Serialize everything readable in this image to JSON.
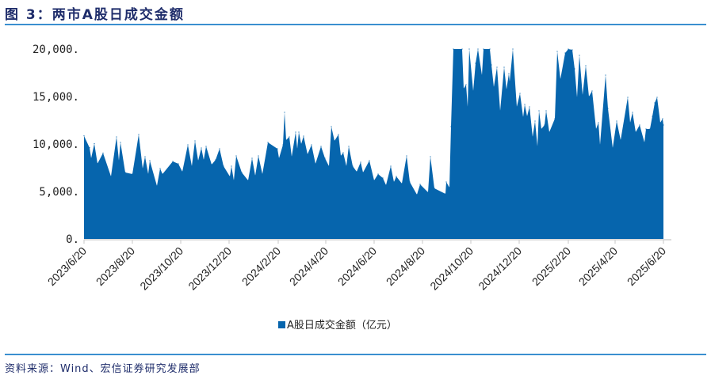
{
  "header": {
    "title": "图 3：两市A股日成交金额"
  },
  "footer": {
    "source": "资料来源：Wind、宏信证券研究发展部"
  },
  "chart_data": {
    "type": "area",
    "title": "图 3：两市A股日成交金额",
    "xlabel": "",
    "ylabel": "",
    "ylim": [
      0,
      20000
    ],
    "grid": false,
    "legend_position": "bottom",
    "color": "#0665ad",
    "y_ticks": [
      "0.",
      "5,000.",
      "10,000.",
      "15,000.",
      "20,000."
    ],
    "y_tick_values": [
      0,
      5000,
      10000,
      15000,
      20000
    ],
    "x_ticks": [
      "2023/6/20",
      "2023/8/20",
      "2023/10/20",
      "2023/12/20",
      "2024/2/20",
      "2024/4/20",
      "2024/6/20",
      "2024/8/20",
      "2024/10/20",
      "2024/12/20",
      "2025/2/20",
      "2025/4/20",
      "2025/6/20"
    ],
    "series": [
      {
        "name": "A股日成交金额（亿元）",
        "x": [
          "2023-06-20",
          "2023-06-27",
          "2023-06-29",
          "2023-07-03",
          "2023-07-07",
          "2023-07-14",
          "2023-07-24",
          "2023-07-31",
          "2023-08-03",
          "2023-08-05",
          "2023-08-11",
          "2023-08-20",
          "2023-08-28",
          "2023-09-02",
          "2023-09-05",
          "2023-09-09",
          "2023-09-11",
          "2023-09-20",
          "2023-09-24",
          "2023-09-27",
          "2023-10-10",
          "2023-10-17",
          "2023-10-22",
          "2023-10-29",
          "2023-11-03",
          "2023-11-07",
          "2023-11-11",
          "2023-11-15",
          "2023-11-18",
          "2023-11-21",
          "2023-11-28",
          "2023-12-03",
          "2023-12-08",
          "2023-12-13",
          "2023-12-21",
          "2023-12-23",
          "2023-12-26",
          "2023-12-29",
          "2024-01-05",
          "2024-01-13",
          "2024-01-18",
          "2024-01-22",
          "2024-01-26",
          "2024-01-31",
          "2024-02-07",
          "2024-02-19",
          "2024-02-21",
          "2024-02-26",
          "2024-02-28",
          "2024-03-01",
          "2024-03-05",
          "2024-03-08",
          "2024-03-13",
          "2024-03-15",
          "2024-03-17",
          "2024-03-20",
          "2024-03-23",
          "2024-03-28",
          "2024-04-02",
          "2024-04-07",
          "2024-04-14",
          "2024-04-19",
          "2024-04-24",
          "2024-04-27",
          "2024-05-01",
          "2024-05-06",
          "2024-05-09",
          "2024-05-12",
          "2024-05-16",
          "2024-05-19",
          "2024-05-24",
          "2024-05-29",
          "2024-06-03",
          "2024-06-06",
          "2024-06-14",
          "2024-06-20",
          "2024-06-25",
          "2024-07-01",
          "2024-07-05",
          "2024-07-11",
          "2024-07-15",
          "2024-07-18",
          "2024-07-25",
          "2024-07-31",
          "2024-08-04",
          "2024-08-13",
          "2024-08-17",
          "2024-08-27",
          "2024-08-30",
          "2024-09-04",
          "2024-09-18",
          "2024-09-19",
          "2024-09-23",
          "2024-09-25",
          "2024-09-28",
          "2024-10-09",
          "2024-10-11",
          "2024-10-14",
          "2024-10-16",
          "2024-10-18",
          "2024-10-23",
          "2024-10-26",
          "2024-10-29",
          "2024-11-03",
          "2024-11-05",
          "2024-11-13",
          "2024-11-15",
          "2024-11-18",
          "2024-11-22",
          "2024-11-26",
          "2024-12-01",
          "2024-12-04",
          "2024-12-07",
          "2024-12-08",
          "2024-12-12",
          "2024-12-17",
          "2024-12-21",
          "2024-12-25",
          "2024-12-27",
          "2024-12-30",
          "2025-01-02",
          "2025-01-06",
          "2025-01-09",
          "2025-01-12",
          "2025-01-14",
          "2025-01-17",
          "2025-01-21",
          "2025-01-23",
          "2025-01-27",
          "2025-02-03",
          "2025-02-06",
          "2025-02-10",
          "2025-02-16",
          "2025-02-20",
          "2025-02-25",
          "2025-02-28",
          "2025-03-03",
          "2025-03-06",
          "2025-03-10",
          "2025-03-14",
          "2025-03-18",
          "2025-03-22",
          "2025-03-27",
          "2025-03-30",
          "2025-04-01",
          "2025-04-08",
          "2025-04-11",
          "2025-04-17",
          "2025-04-22",
          "2025-04-27",
          "2025-05-06",
          "2025-05-09",
          "2025-05-12",
          "2025-05-16",
          "2025-05-21",
          "2025-05-27",
          "2025-05-29",
          "2025-06-03",
          "2025-06-06",
          "2025-06-09",
          "2025-06-12",
          "2025-06-16",
          "2025-06-19",
          "2025-06-20"
        ],
        "values": [
          10860,
          9610,
          8500,
          10030,
          7940,
          9050,
          6580,
          10750,
          8250,
          10170,
          7000,
          6830,
          11000,
          7420,
          8670,
          6830,
          8250,
          5580,
          7420,
          6830,
          8170,
          7920,
          7080,
          9920,
          7670,
          10330,
          8250,
          9580,
          8330,
          9750,
          7830,
          8330,
          9500,
          7670,
          6580,
          7670,
          6170,
          8750,
          7000,
          6170,
          8500,
          6670,
          8750,
          6830,
          10170,
          9500,
          8500,
          9920,
          13330,
          10420,
          10750,
          8670,
          11250,
          9500,
          11250,
          10000,
          10830,
          8920,
          9920,
          7920,
          9750,
          8500,
          7670,
          11830,
          10330,
          11000,
          8750,
          9080,
          7670,
          9750,
          7670,
          7080,
          8080,
          7000,
          8250,
          6170,
          6830,
          6420,
          5670,
          7670,
          6000,
          6580,
          5830,
          8750,
          6000,
          4670,
          5750,
          4920,
          8670,
          5330,
          4750,
          6000,
          5420,
          11830,
          20000,
          20000,
          15830,
          16250,
          13920,
          20000,
          15580,
          18500,
          20000,
          17250,
          20000,
          20000,
          18330,
          16000,
          18080,
          13500,
          18080,
          15750,
          17420,
          16580,
          20000,
          13920,
          15330,
          12830,
          14170,
          12920,
          13920,
          10750,
          12420,
          9750,
          13500,
          11580,
          12000,
          13500,
          11250,
          12670,
          19750,
          16830,
          19580,
          20000,
          19920,
          17920,
          14920,
          19330,
          15170,
          18250,
          15000,
          15580,
          11580,
          12250,
          9920,
          17250,
          13750,
          9580,
          12420,
          10420,
          14920,
          12250,
          13330,
          11250,
          12000,
          10170,
          11580,
          11580,
          12920,
          14330,
          14920,
          12250,
          12670,
          12000
        ]
      }
    ]
  }
}
